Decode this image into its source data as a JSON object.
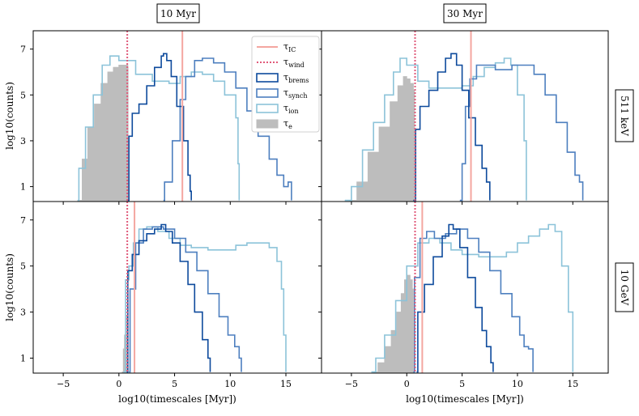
{
  "chart_data": {
    "type": "histogram-grid",
    "column_titles": [
      "10 Myr",
      "30 Myr"
    ],
    "row_titles": [
      "511 keV",
      "10 GeV"
    ],
    "xlabel": "log$_{10}$(timescales [Myr])",
    "xlabel_text": "log10(timescales [Myr])",
    "ylabel_text": "log10(counts)",
    "xlim": [
      -7.7,
      18.2
    ],
    "ylim": [
      0.35,
      7.8
    ],
    "xticks": [
      "−5",
      "0",
      "5",
      "10",
      "15"
    ],
    "xtick_values": [
      -5,
      0,
      5,
      10,
      15
    ],
    "yticks": [
      "1",
      "3",
      "5",
      "7"
    ],
    "ytick_values": [
      1,
      3,
      5,
      7
    ],
    "colors": {
      "ic": "#f4a6a0",
      "wind": "#e05a7a",
      "brems": "#0d4a9c",
      "synch": "#4d7fbf",
      "ion": "#8cc3d9",
      "e": "#bdbdbd"
    },
    "legend": {
      "position": "top-right of top-left panel",
      "entries": [
        {
          "key": "ic",
          "base": "τ",
          "sub": "IC"
        },
        {
          "key": "wind",
          "base": "τ",
          "sub": "wind"
        },
        {
          "key": "brems",
          "base": "τ",
          "sub": "brems"
        },
        {
          "key": "synch",
          "base": "τ",
          "sub": "synch"
        },
        {
          "key": "ion",
          "base": "τ",
          "sub": "ion"
        },
        {
          "key": "e",
          "base": "τ",
          "sub": "e"
        }
      ]
    },
    "panels": [
      {
        "row": 0,
        "col": 0,
        "ic_line_x": 5.7,
        "wind_line_x": 0.75,
        "series": {
          "e": [
            [
              -3.7,
              0.4
            ],
            [
              -3.3,
              2.2
            ],
            [
              -2.8,
              3.6
            ],
            [
              -2.2,
              4.6
            ],
            [
              -1.6,
              5.5
            ],
            [
              -1.0,
              6.0
            ],
            [
              -0.5,
              6.2
            ],
            [
              0.0,
              6.3
            ],
            [
              0.5,
              6.3
            ],
            [
              0.8,
              6.2
            ],
            [
              0.82,
              0.4
            ]
          ],
          "ion": [
            [
              -3.7,
              0.4
            ],
            [
              -3.6,
              1.8
            ],
            [
              -3.0,
              3.6
            ],
            [
              -2.3,
              5.0
            ],
            [
              -1.5,
              6.3
            ],
            [
              -0.8,
              6.7
            ],
            [
              0.0,
              6.5
            ],
            [
              1.5,
              5.9
            ],
            [
              3.0,
              5.6
            ],
            [
              4.5,
              5.5
            ],
            [
              5.5,
              5.8
            ],
            [
              6.5,
              6.0
            ],
            [
              7.5,
              5.9
            ],
            [
              8.5,
              5.6
            ],
            [
              9.5,
              5.0
            ],
            [
              10.5,
              4.0
            ],
            [
              10.7,
              2.0
            ],
            [
              10.8,
              0.4
            ]
          ],
          "brems": [
            [
              0.8,
              0.4
            ],
            [
              0.9,
              3.2
            ],
            [
              1.2,
              4.2
            ],
            [
              1.8,
              4.6
            ],
            [
              2.5,
              5.4
            ],
            [
              3.2,
              6.2
            ],
            [
              3.8,
              6.7
            ],
            [
              4.0,
              6.8
            ],
            [
              4.3,
              6.5
            ],
            [
              4.7,
              5.8
            ],
            [
              5.2,
              4.5
            ],
            [
              5.8,
              3.0
            ],
            [
              6.2,
              1.5
            ],
            [
              6.4,
              0.8
            ],
            [
              6.5,
              0.4
            ]
          ],
          "synch": [
            [
              4.0,
              0.4
            ],
            [
              4.1,
              1.2
            ],
            [
              4.8,
              3.0
            ],
            [
              5.5,
              4.8
            ],
            [
              6.0,
              5.8
            ],
            [
              6.8,
              6.5
            ],
            [
              7.5,
              6.6
            ],
            [
              8.5,
              6.4
            ],
            [
              9.5,
              6.0
            ],
            [
              10.5,
              5.3
            ],
            [
              11.5,
              4.3
            ],
            [
              12.5,
              3.2
            ],
            [
              13.5,
              2.2
            ],
            [
              14.2,
              1.5
            ],
            [
              14.8,
              1.0
            ],
            [
              15.2,
              1.2
            ],
            [
              15.5,
              0.4
            ]
          ]
        }
      },
      {
        "row": 0,
        "col": 1,
        "ic_line_x": 5.8,
        "wind_line_x": 0.75,
        "series": {
          "e": [
            [
              -5.2,
              0.4
            ],
            [
              -4.5,
              1.2
            ],
            [
              -3.5,
              2.5
            ],
            [
              -2.5,
              3.6
            ],
            [
              -1.5,
              4.7
            ],
            [
              -0.8,
              5.4
            ],
            [
              -0.3,
              5.8
            ],
            [
              0.0,
              5.7
            ],
            [
              0.3,
              5.5
            ],
            [
              0.6,
              5.2
            ],
            [
              0.7,
              0.4
            ]
          ],
          "ion": [
            [
              -5.6,
              0.4
            ],
            [
              -5.0,
              1.0
            ],
            [
              -4.0,
              2.6
            ],
            [
              -3.0,
              3.8
            ],
            [
              -2.0,
              5.0
            ],
            [
              -1.2,
              6.0
            ],
            [
              -0.6,
              6.6
            ],
            [
              0.0,
              6.3
            ],
            [
              1.0,
              5.6
            ],
            [
              2.0,
              5.3
            ],
            [
              3.0,
              5.3
            ],
            [
              4.0,
              5.3
            ],
            [
              5.0,
              5.4
            ],
            [
              6.0,
              5.8
            ],
            [
              7.0,
              6.2
            ],
            [
              8.0,
              6.4
            ],
            [
              8.8,
              6.6
            ],
            [
              9.4,
              6.3
            ],
            [
              10.0,
              5.0
            ],
            [
              10.6,
              3.0
            ],
            [
              10.8,
              0.4
            ]
          ],
          "brems": [
            [
              0.6,
              0.4
            ],
            [
              0.8,
              3.5
            ],
            [
              1.2,
              4.5
            ],
            [
              2.0,
              5.2
            ],
            [
              2.8,
              6.0
            ],
            [
              3.5,
              6.6
            ],
            [
              4.0,
              6.8
            ],
            [
              4.5,
              6.3
            ],
            [
              5.0,
              5.2
            ],
            [
              5.6,
              4.0
            ],
            [
              6.2,
              2.8
            ],
            [
              6.8,
              1.8
            ],
            [
              7.2,
              1.2
            ],
            [
              7.5,
              0.4
            ]
          ],
          "synch": [
            [
              4.8,
              0.4
            ],
            [
              5.0,
              2.0
            ],
            [
              5.3,
              4.5
            ],
            [
              5.7,
              5.7
            ],
            [
              6.3,
              6.3
            ],
            [
              7.0,
              6.3
            ],
            [
              8.0,
              6.1
            ],
            [
              9.5,
              6.3
            ],
            [
              10.5,
              6.3
            ],
            [
              11.5,
              5.9
            ],
            [
              12.5,
              5.0
            ],
            [
              13.5,
              3.8
            ],
            [
              14.5,
              2.5
            ],
            [
              15.2,
              1.5
            ],
            [
              15.6,
              1.2
            ],
            [
              15.9,
              0.4
            ]
          ]
        }
      },
      {
        "row": 1,
        "col": 0,
        "ic_line_x": 1.4,
        "wind_line_x": 0.75,
        "series": {
          "e": [
            [
              0.3,
              0.4
            ],
            [
              0.4,
              1.4
            ],
            [
              0.5,
              2.0
            ],
            [
              0.7,
              2.8
            ],
            [
              0.8,
              3.2
            ],
            [
              0.82,
              0.4
            ]
          ],
          "ion": [
            [
              0.4,
              0.4
            ],
            [
              0.6,
              4.4
            ],
            [
              0.9,
              5.0
            ],
            [
              1.3,
              6.0
            ],
            [
              1.8,
              6.6
            ],
            [
              2.5,
              6.7
            ],
            [
              3.5,
              6.5
            ],
            [
              4.5,
              6.2
            ],
            [
              5.5,
              5.9
            ],
            [
              6.5,
              5.8
            ],
            [
              8.0,
              5.7
            ],
            [
              9.5,
              5.7
            ],
            [
              10.5,
              5.9
            ],
            [
              11.5,
              6.0
            ],
            [
              12.5,
              6.0
            ],
            [
              13.5,
              5.8
            ],
            [
              14.2,
              5.2
            ],
            [
              14.6,
              4.0
            ],
            [
              14.8,
              2.0
            ],
            [
              15.0,
              0.4
            ]
          ],
          "brems": [
            [
              0.7,
              0.4
            ],
            [
              0.8,
              4.8
            ],
            [
              1.2,
              5.5
            ],
            [
              1.8,
              6.1
            ],
            [
              2.5,
              6.4
            ],
            [
              3.2,
              6.6
            ],
            [
              3.8,
              6.8
            ],
            [
              4.2,
              6.5
            ],
            [
              4.8,
              6.0
            ],
            [
              5.5,
              5.2
            ],
            [
              6.2,
              4.2
            ],
            [
              6.8,
              3.0
            ],
            [
              7.5,
              1.8
            ],
            [
              8.0,
              1.0
            ],
            [
              8.2,
              0.4
            ]
          ],
          "synch": [
            [
              0.9,
              0.4
            ],
            [
              1.0,
              4.0
            ],
            [
              1.5,
              6.0
            ],
            [
              2.2,
              6.6
            ],
            [
              3.0,
              6.7
            ],
            [
              4.0,
              6.6
            ],
            [
              5.0,
              6.2
            ],
            [
              6.0,
              5.6
            ],
            [
              7.0,
              4.8
            ],
            [
              8.0,
              3.8
            ],
            [
              9.0,
              2.8
            ],
            [
              9.8,
              2.0
            ],
            [
              10.4,
              1.5
            ],
            [
              10.8,
              1.0
            ],
            [
              11.0,
              0.4
            ]
          ]
        }
      },
      {
        "row": 1,
        "col": 1,
        "ic_line_x": 1.4,
        "wind_line_x": 0.75,
        "series": {
          "e": [
            [
              -3.0,
              0.4
            ],
            [
              -2.6,
              0.8
            ],
            [
              -2.0,
              1.5
            ],
            [
              -1.4,
              2.2
            ],
            [
              -0.9,
              3.0
            ],
            [
              -0.5,
              3.8
            ],
            [
              -0.2,
              4.4
            ],
            [
              0.0,
              4.6
            ],
            [
              0.3,
              4.4
            ],
            [
              0.5,
              4.0
            ],
            [
              0.6,
              0.4
            ]
          ],
          "ion": [
            [
              -3.2,
              0.4
            ],
            [
              -2.8,
              1.0
            ],
            [
              -2.0,
              2.0
            ],
            [
              -1.0,
              3.5
            ],
            [
              0.0,
              5.0
            ],
            [
              1.0,
              6.0
            ],
            [
              2.0,
              6.2
            ],
            [
              3.0,
              6.0
            ],
            [
              4.0,
              5.7
            ],
            [
              5.0,
              5.5
            ],
            [
              6.5,
              5.4
            ],
            [
              8.0,
              5.4
            ],
            [
              9.0,
              5.6
            ],
            [
              10.0,
              6.0
            ],
            [
              11.0,
              6.3
            ],
            [
              12.0,
              6.6
            ],
            [
              12.8,
              6.8
            ],
            [
              13.4,
              6.5
            ],
            [
              14.0,
              5.0
            ],
            [
              14.6,
              3.0
            ],
            [
              15.0,
              0.4
            ]
          ],
          "brems": [
            [
              0.9,
              0.4
            ],
            [
              1.0,
              3.0
            ],
            [
              1.6,
              4.2
            ],
            [
              2.4,
              5.4
            ],
            [
              3.2,
              6.3
            ],
            [
              3.8,
              6.8
            ],
            [
              4.2,
              6.6
            ],
            [
              4.8,
              5.8
            ],
            [
              5.5,
              4.5
            ],
            [
              6.2,
              3.2
            ],
            [
              6.8,
              2.2
            ],
            [
              7.2,
              1.5
            ],
            [
              7.6,
              0.8
            ],
            [
              7.8,
              0.4
            ]
          ],
          "synch": [
            [
              0.6,
              0.4
            ],
            [
              0.7,
              4.5
            ],
            [
              1.2,
              6.2
            ],
            [
              1.8,
              6.5
            ],
            [
              2.5,
              6.2
            ],
            [
              3.5,
              6.4
            ],
            [
              4.5,
              6.6
            ],
            [
              5.5,
              6.2
            ],
            [
              6.5,
              5.6
            ],
            [
              7.5,
              4.8
            ],
            [
              8.5,
              3.8
            ],
            [
              9.5,
              2.8
            ],
            [
              10.2,
              2.0
            ],
            [
              10.6,
              1.5
            ],
            [
              11.0,
              1.4
            ],
            [
              11.4,
              0.4
            ]
          ]
        }
      }
    ]
  }
}
